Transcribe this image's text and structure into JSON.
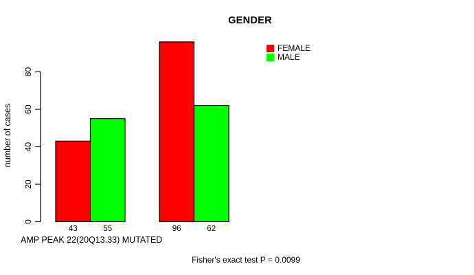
{
  "chart_data": {
    "type": "bar",
    "title": "GENDER",
    "ylabel": "number of cases",
    "xlabel": "AMP PEAK 22(20Q13.33) MUTATED",
    "footnote": "Fisher's exact test P = 0.0099",
    "ylim": [
      0,
      80
    ],
    "yticks": [
      0,
      20,
      40,
      60,
      80
    ],
    "grid": false,
    "legend_position": "top-right",
    "bar_value_labels": [
      [
        "43",
        "55"
      ],
      [
        "96",
        "62"
      ]
    ],
    "series": [
      {
        "name": "FEMALE",
        "color": "#ff0000",
        "values": [
          43,
          96
        ]
      },
      {
        "name": "MALE",
        "color": "#00ff00",
        "values": [
          55,
          62
        ]
      }
    ],
    "axis_color": "#000000",
    "text_color": "#000000",
    "background_color": "#ffffff"
  }
}
